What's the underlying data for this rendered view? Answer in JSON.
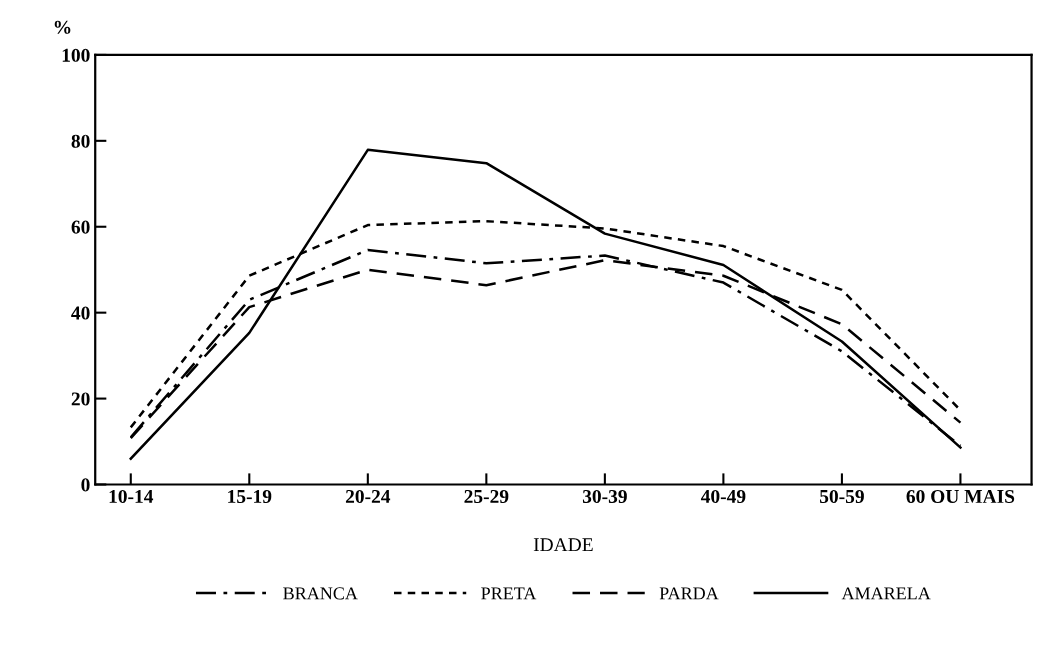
{
  "chart_data": {
    "type": "line",
    "ylabel": "%",
    "xlabel": "IDADE",
    "categories": [
      "10-14",
      "15-19",
      "20-24",
      "25-29",
      "30-39",
      "40-49",
      "50-59",
      "60 OU MAIS"
    ],
    "series": [
      {
        "name": "BRANCA",
        "color": "#000000",
        "line_style": "dashdot",
        "values": [
          11,
          43,
          54.6,
          51.5,
          53.3,
          47,
          31,
          9
        ]
      },
      {
        "name": "PRETA",
        "color": "#000000",
        "line_style": "dotted",
        "values": [
          13.3,
          48.6,
          60.4,
          61.3,
          59.6,
          55.5,
          45.3,
          17.3
        ]
      },
      {
        "name": "PARDA",
        "color": "#000000",
        "line_style": "dashed",
        "values": [
          10.8,
          41.3,
          50,
          46.4,
          52.2,
          48.6,
          37.3,
          14.4
        ]
      },
      {
        "name": "AMARELA",
        "color": "#000000",
        "line_style": "solid",
        "values": [
          6,
          35.3,
          77.9,
          74.8,
          58.4,
          51.1,
          33.3,
          8.6
        ]
      }
    ],
    "ylim": [
      0,
      100
    ],
    "yticks": [
      0,
      20,
      40,
      60,
      80,
      100
    ],
    "grid": false,
    "legend": "bottom",
    "marker": "none"
  }
}
